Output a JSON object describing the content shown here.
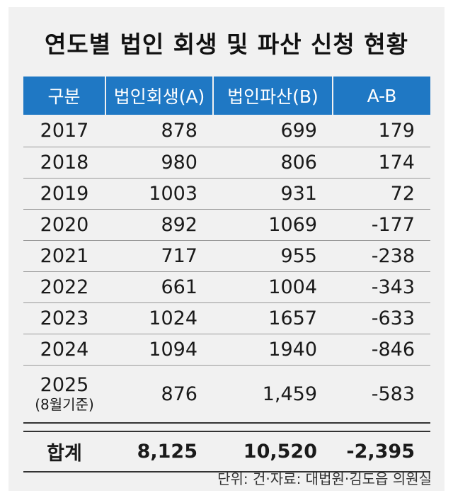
{
  "title": "연도별 법인 회생 및 파산 신청 현황",
  "footnote": "단위: 건·자료: 대법원·김도읍 의원실",
  "chart_data": {
    "type": "table",
    "title": "연도별 법인 회생 및 파산 신청 현황",
    "columns": [
      "구분",
      "법인회생(A)",
      "법인파산(B)",
      "A-B"
    ],
    "rows": [
      {
        "year": "2017",
        "sub": "",
        "a": "878",
        "b": "699",
        "diff": "179"
      },
      {
        "year": "2018",
        "sub": "",
        "a": "980",
        "b": "806",
        "diff": "174"
      },
      {
        "year": "2019",
        "sub": "",
        "a": "1003",
        "b": "931",
        "diff": "72"
      },
      {
        "year": "2020",
        "sub": "",
        "a": "892",
        "b": "1069",
        "diff": "-177"
      },
      {
        "year": "2021",
        "sub": "",
        "a": "717",
        "b": "955",
        "diff": "-238"
      },
      {
        "year": "2022",
        "sub": "",
        "a": "661",
        "b": "1004",
        "diff": "-343"
      },
      {
        "year": "2023",
        "sub": "",
        "a": "1024",
        "b": "1657",
        "diff": "-633"
      },
      {
        "year": "2024",
        "sub": "",
        "a": "1094",
        "b": "1940",
        "diff": "-846"
      },
      {
        "year": "2025",
        "sub": "(8월기준)",
        "a": "876",
        "b": "1,459",
        "diff": "-583"
      }
    ],
    "total": {
      "label": "합계",
      "a": "8,125",
      "b": "10,520",
      "diff": "-2,395"
    },
    "unit": "건",
    "source": "대법원·김도읍 의원실"
  }
}
